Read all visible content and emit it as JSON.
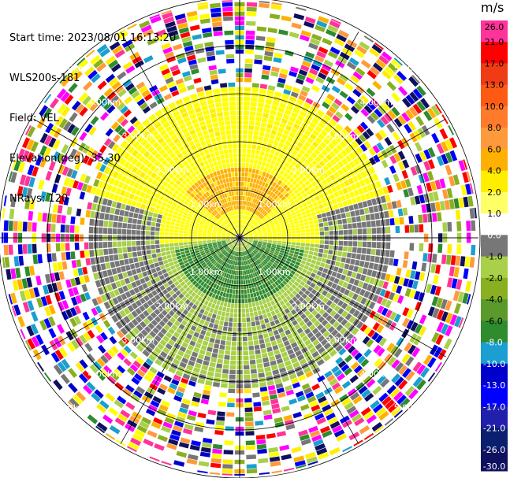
{
  "header": {
    "start_time": "Start time: 2023/08/01 16:13:20",
    "site": "WLS200s-181",
    "field": "Field: VEL",
    "elevation": "Elevation(deg): 35.30",
    "nrays": "NRays: 120"
  },
  "chart_data": {
    "type": "heatmap",
    "subtype": "polar-ppi",
    "field": "VEL",
    "n_rays": 120,
    "range_rings_km": [
      1.0,
      2.0,
      3.0,
      4.0,
      5.0
    ],
    "ring_labels": [
      "1.00km",
      "2.00km",
      "3.00km",
      "4.00km",
      "5.00km"
    ],
    "max_range_km": 5.3,
    "colorbar": {
      "unit": "m/s",
      "ticks": [
        "26.0",
        "21.0",
        "17.0",
        "13.0",
        "10.0",
        "8.0",
        "6.0",
        "4.0",
        "2.0",
        "1.0",
        "0.0",
        "-1.0",
        "-2.0",
        "-4.0",
        "-6.0",
        "-8.0",
        "-10.0",
        "-13.0",
        "-17.0",
        "-21.0",
        "-26.0",
        "-30.0"
      ],
      "colors": [
        "#ff3399",
        "#ff0000",
        "#f03c14",
        "#ff5a14",
        "#ff7a2a",
        "#ff9a3c",
        "#ffb000",
        "#ffee00",
        "#ffff66",
        "#ffffff",
        "#777777",
        "#a8d048",
        "#88b020",
        "#5a9a2a",
        "#2e8b2e",
        "#1a9fd0",
        "#0000cc",
        "#0000ff",
        "#2020aa",
        "#0a1f6e",
        "#101060",
        "#101060"
      ]
    },
    "pattern_description_rules": {
      "core_yellow_below_km": 1.6,
      "orange_patch_rays": [
        "north",
        "northeast"
      ],
      "green_patch_rays": [
        "south",
        "southwest"
      ],
      "gray_band": "west and east, 1-3 km",
      "noise_beyond_km": 3.0
    }
  }
}
